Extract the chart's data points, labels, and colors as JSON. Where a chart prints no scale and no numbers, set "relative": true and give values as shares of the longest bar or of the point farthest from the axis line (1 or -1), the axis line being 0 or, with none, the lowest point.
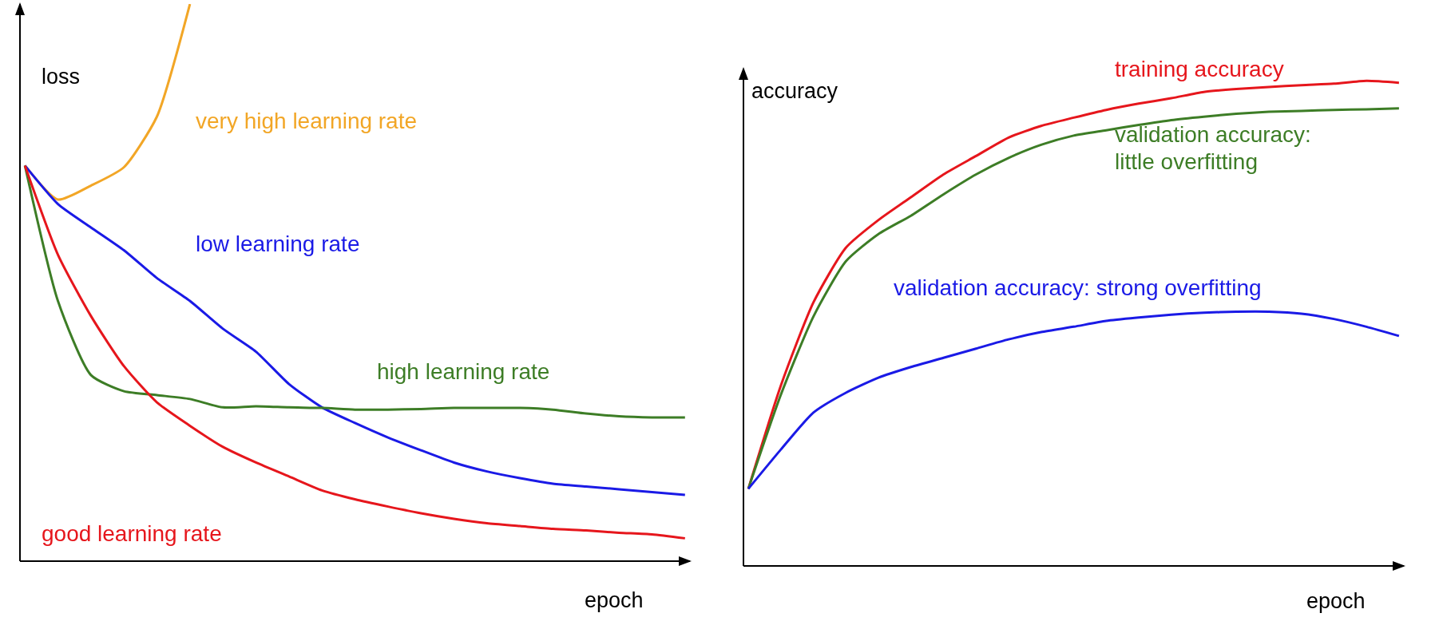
{
  "chart_data": [
    {
      "type": "line",
      "relative": true,
      "xlabel": "epoch",
      "ylabel": "loss",
      "categories": [
        null,
        null,
        null,
        null,
        null,
        null,
        null,
        null,
        null,
        null,
        null,
        null,
        null,
        null,
        null,
        null,
        null,
        null,
        null,
        null,
        null
      ],
      "series": [
        {
          "name": "very high learning rate",
          "color": "#f2a626",
          "values": [
            0.71,
            0.649,
            0.674,
            0.707,
            0.798,
            1.0,
            null,
            null,
            null,
            null,
            null,
            null,
            null,
            null,
            null,
            null,
            null,
            null,
            null,
            null,
            null
          ]
        },
        {
          "name": "low learning rate",
          "color": "#1a1ae6",
          "values": [
            0.71,
            0.641,
            0.599,
            0.558,
            0.508,
            0.467,
            0.417,
            0.376,
            0.318,
            0.276,
            0.248,
            0.222,
            0.199,
            0.177,
            0.161,
            0.149,
            0.139,
            0.134,
            0.129,
            0.124,
            0.119
          ]
        },
        {
          "name": "high learning rate",
          "color": "#3d7d26",
          "values": [
            0.71,
            0.467,
            0.334,
            0.305,
            0.298,
            0.291,
            0.276,
            0.278,
            0.276,
            0.275,
            0.272,
            0.272,
            0.273,
            0.275,
            0.275,
            0.275,
            0.272,
            0.265,
            0.26,
            0.258,
            0.258
          ]
        },
        {
          "name": "good learning rate",
          "color": "#e6161c",
          "values": [
            0.71,
            0.55,
            0.44,
            0.35,
            0.285,
            0.243,
            0.205,
            0.177,
            0.152,
            0.127,
            0.111,
            0.098,
            0.086,
            0.076,
            0.068,
            0.063,
            0.058,
            0.055,
            0.051,
            0.048,
            0.041
          ]
        }
      ]
    },
    {
      "type": "line",
      "relative": true,
      "xlabel": "epoch",
      "ylabel": "accuracy",
      "categories": [
        null,
        null,
        null,
        null,
        null,
        null,
        null,
        null,
        null,
        null,
        null,
        null,
        null,
        null,
        null,
        null,
        null,
        null,
        null,
        null,
        null
      ],
      "series": [
        {
          "name": "training accuracy",
          "color": "#e6161c",
          "values": [
            0.159,
            0.372,
            0.543,
            0.656,
            0.713,
            0.76,
            0.807,
            0.845,
            0.883,
            0.907,
            0.924,
            0.94,
            0.953,
            0.964,
            0.977,
            0.983,
            0.987,
            0.991,
            0.994,
            1.0,
            0.996
          ]
        },
        {
          "name": "validation accuracy: little overfitting",
          "color": "#3d7d26",
          "values": [
            0.159,
            0.353,
            0.514,
            0.628,
            0.684,
            0.722,
            0.766,
            0.807,
            0.841,
            0.868,
            0.887,
            0.898,
            0.909,
            0.919,
            0.926,
            0.932,
            0.936,
            0.938,
            0.94,
            0.941,
            0.943
          ]
        },
        {
          "name": "validation accuracy: strong overfitting",
          "color": "#1a1ae6",
          "values": [
            0.159,
            0.24,
            0.316,
            0.357,
            0.388,
            0.41,
            0.429,
            0.448,
            0.467,
            0.482,
            0.493,
            0.505,
            0.512,
            0.518,
            0.522,
            0.524,
            0.524,
            0.52,
            0.509,
            0.493,
            0.474
          ]
        }
      ]
    }
  ]
}
